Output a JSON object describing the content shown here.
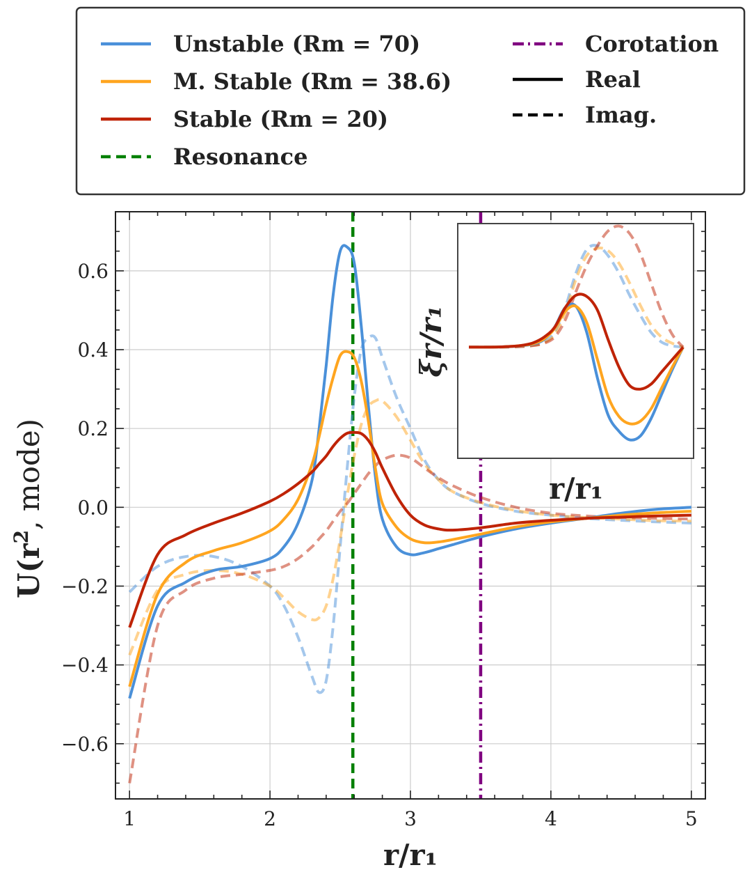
{
  "chart_data": [
    {
      "type": "line",
      "title": "",
      "xlabel": "r/r₁",
      "ylabel_main": "U(r",
      "ylabel_sup": "2",
      "ylabel_rest": ", mode)",
      "xlim": [
        0.9,
        5.1
      ],
      "ylim": [
        -0.74,
        0.75
      ],
      "xticks": [
        1,
        2,
        3,
        4,
        5
      ],
      "yticks": [
        -0.6,
        -0.4,
        -0.2,
        0.0,
        0.2,
        0.4,
        0.6
      ],
      "ytick_labels": [
        "−0.6",
        "−0.4",
        "−0.2",
        "0.0",
        "0.2",
        "0.4",
        "0.6"
      ],
      "grid": true,
      "legend_position": "top (outside)",
      "legend": {
        "left": [
          {
            "label": "Unstable (Rm = 70)",
            "color": "#4A90D9",
            "style": "solid"
          },
          {
            "label": "M. Stable (Rm = 38.6)",
            "color": "#FFA51F",
            "style": "solid"
          },
          {
            "label": "Stable (Rm = 20)",
            "color": "#BF2306",
            "style": "solid"
          },
          {
            "label": "Resonance",
            "color": "#008000",
            "style": "dashed"
          }
        ],
        "right": [
          {
            "label": "Corotation",
            "color": "#800080",
            "style": "dashdot"
          },
          {
            "label": "Real",
            "color": "#000000",
            "style": "solid"
          },
          {
            "label": "Imag.",
            "color": "#000000",
            "style": "dashed"
          }
        ]
      },
      "vlines": [
        {
          "name": "Resonance",
          "x": 2.59,
          "color": "#008000",
          "style": "dashed"
        },
        {
          "name": "Corotation",
          "x": 3.5,
          "color": "#800080",
          "style": "dashdot"
        }
      ],
      "x": [
        1.0,
        1.2,
        1.4,
        1.6,
        1.8,
        2.0,
        2.1,
        2.2,
        2.3,
        2.35,
        2.4,
        2.45,
        2.5,
        2.55,
        2.6,
        2.65,
        2.7,
        2.75,
        2.8,
        2.9,
        3.0,
        3.1,
        3.2,
        3.3,
        3.5,
        3.75,
        4.0,
        4.25,
        4.5,
        4.75,
        5.0
      ],
      "series": [
        {
          "name": "Unstable (Rm = 70) Real",
          "color": "#4A90D9",
          "dash": "solid",
          "alpha": 1.0,
          "values": [
            -0.485,
            -0.25,
            -0.19,
            -0.16,
            -0.15,
            -0.13,
            -0.1,
            -0.04,
            0.07,
            0.2,
            0.36,
            0.54,
            0.65,
            0.66,
            0.62,
            0.46,
            0.26,
            0.08,
            -0.03,
            -0.1,
            -0.12,
            -0.115,
            -0.105,
            -0.095,
            -0.075,
            -0.055,
            -0.04,
            -0.028,
            -0.015,
            -0.005,
            0.0
          ]
        },
        {
          "name": "M. Stable (Rm = 38.6) Real",
          "color": "#FFA51F",
          "dash": "solid",
          "alpha": 1.0,
          "values": [
            -0.455,
            -0.22,
            -0.14,
            -0.11,
            -0.09,
            -0.06,
            -0.03,
            0.02,
            0.11,
            0.18,
            0.26,
            0.33,
            0.385,
            0.395,
            0.38,
            0.32,
            0.22,
            0.1,
            0.01,
            -0.05,
            -0.08,
            -0.09,
            -0.088,
            -0.082,
            -0.068,
            -0.05,
            -0.037,
            -0.028,
            -0.02,
            -0.014,
            -0.01
          ]
        },
        {
          "name": "Stable (Rm = 20) Real",
          "color": "#BF2306",
          "dash": "solid",
          "alpha": 1.0,
          "values": [
            -0.305,
            -0.12,
            -0.07,
            -0.04,
            -0.015,
            0.015,
            0.035,
            0.06,
            0.09,
            0.11,
            0.13,
            0.155,
            0.175,
            0.188,
            0.19,
            0.187,
            0.17,
            0.14,
            0.1,
            0.03,
            -0.02,
            -0.045,
            -0.055,
            -0.058,
            -0.052,
            -0.04,
            -0.033,
            -0.028,
            -0.025,
            -0.022,
            -0.02
          ]
        },
        {
          "name": "Unstable (Rm = 70) Imag.",
          "color": "#4A90D9",
          "dash": "dashed",
          "alpha": 0.5,
          "values": [
            -0.215,
            -0.15,
            -0.125,
            -0.125,
            -0.15,
            -0.2,
            -0.25,
            -0.33,
            -0.43,
            -0.47,
            -0.44,
            -0.3,
            -0.1,
            0.1,
            0.28,
            0.4,
            0.43,
            0.43,
            0.38,
            0.28,
            0.2,
            0.12,
            0.07,
            0.04,
            0.01,
            -0.01,
            -0.02,
            -0.028,
            -0.033,
            -0.037,
            -0.04
          ]
        },
        {
          "name": "M. Stable (Rm = 38.6) Imag.",
          "color": "#FFA51F",
          "dash": "dashed",
          "alpha": 0.5,
          "values": [
            -0.375,
            -0.21,
            -0.17,
            -0.16,
            -0.17,
            -0.2,
            -0.23,
            -0.265,
            -0.285,
            -0.28,
            -0.25,
            -0.18,
            -0.08,
            0.03,
            0.13,
            0.21,
            0.255,
            0.27,
            0.27,
            0.23,
            0.17,
            0.11,
            0.07,
            0.04,
            0.012,
            -0.008,
            -0.02,
            -0.026,
            -0.03,
            -0.034,
            -0.035
          ]
        },
        {
          "name": "Stable (Rm = 20) Imag.",
          "color": "#BF2306",
          "dash": "dashed",
          "alpha": 0.5,
          "values": [
            -0.7,
            -0.3,
            -0.21,
            -0.18,
            -0.17,
            -0.16,
            -0.15,
            -0.13,
            -0.1,
            -0.08,
            -0.06,
            -0.035,
            -0.01,
            0.01,
            0.035,
            0.06,
            0.085,
            0.105,
            0.12,
            0.132,
            0.125,
            0.1,
            0.075,
            0.055,
            0.025,
            0.0,
            -0.015,
            -0.022,
            -0.026,
            -0.028,
            -0.03
          ]
        }
      ]
    },
    {
      "type": "line",
      "title": "inset",
      "xlabel": "r/r₁",
      "ylabel": "ξr/r₁",
      "x": [
        0.0,
        0.05,
        0.1,
        0.15,
        0.2,
        0.25,
        0.3,
        0.35,
        0.4,
        0.45,
        0.5,
        0.55,
        0.6,
        0.65,
        0.7,
        0.75,
        0.8,
        0.85,
        0.9,
        0.95,
        1.0
      ],
      "ylim": [
        -0.9,
        1.0
      ],
      "series": [
        {
          "name": "Unstable Real",
          "color": "#4A90D9",
          "dash": "solid",
          "alpha": 1.0,
          "values": [
            0.0,
            0.0,
            0.0,
            0.002,
            0.005,
            0.012,
            0.025,
            0.06,
            0.16,
            0.32,
            0.33,
            0.12,
            -0.25,
            -0.55,
            -0.68,
            -0.75,
            -0.72,
            -0.58,
            -0.38,
            -0.18,
            0.0
          ]
        },
        {
          "name": "M. Stable Real",
          "color": "#FFA51F",
          "dash": "solid",
          "alpha": 1.0,
          "values": [
            0.0,
            0.0,
            0.0,
            0.002,
            0.006,
            0.014,
            0.028,
            0.065,
            0.15,
            0.29,
            0.33,
            0.2,
            -0.1,
            -0.4,
            -0.56,
            -0.62,
            -0.6,
            -0.5,
            -0.33,
            -0.16,
            0.0
          ]
        },
        {
          "name": "Stable Real",
          "color": "#BF2306",
          "dash": "solid",
          "alpha": 1.0,
          "values": [
            0.0,
            0.0,
            0.0,
            0.002,
            0.006,
            0.015,
            0.035,
            0.08,
            0.16,
            0.32,
            0.42,
            0.41,
            0.3,
            0.06,
            -0.16,
            -0.31,
            -0.34,
            -0.3,
            -0.2,
            -0.1,
            0.0
          ]
        },
        {
          "name": "Unstable Imag.",
          "color": "#4A90D9",
          "dash": "dashed",
          "alpha": 0.5,
          "values": [
            0.0,
            0.0,
            0.0,
            0.0,
            0.002,
            0.006,
            0.015,
            0.04,
            0.12,
            0.32,
            0.6,
            0.79,
            0.82,
            0.74,
            0.6,
            0.42,
            0.26,
            0.12,
            0.04,
            0.01,
            0.0
          ]
        },
        {
          "name": "M. Stable Imag.",
          "color": "#FFA51F",
          "dash": "dashed",
          "alpha": 0.5,
          "values": [
            0.0,
            0.0,
            0.0,
            0.0,
            0.002,
            0.006,
            0.014,
            0.035,
            0.1,
            0.28,
            0.55,
            0.74,
            0.8,
            0.78,
            0.68,
            0.52,
            0.34,
            0.18,
            0.08,
            0.03,
            0.0
          ]
        },
        {
          "name": "Stable Imag.",
          "color": "#BF2306",
          "dash": "dashed",
          "alpha": 0.5,
          "values": [
            0.0,
            0.0,
            0.0,
            0.0,
            0.002,
            0.005,
            0.012,
            0.03,
            0.08,
            0.22,
            0.45,
            0.66,
            0.82,
            0.94,
            0.98,
            0.92,
            0.76,
            0.52,
            0.28,
            0.1,
            0.0
          ]
        }
      ]
    }
  ]
}
